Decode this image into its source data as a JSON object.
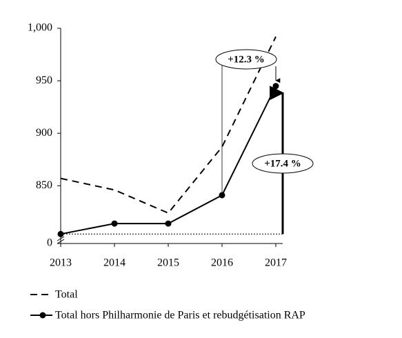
{
  "chart_data": {
    "type": "line",
    "categories": [
      "2013",
      "2014",
      "2015",
      "2016",
      "2017"
    ],
    "series": [
      {
        "name": "Total",
        "color": "#000000",
        "dash": true,
        "marker": false,
        "values": [
          857,
          846,
          824,
          887,
          992
        ]
      },
      {
        "name": "Total hors Philharmonie de Paris et rebudgétisation RAP",
        "color": "#000000",
        "dash": false,
        "marker": true,
        "values": [
          804,
          814,
          814,
          841,
          945
        ]
      }
    ],
    "ylim": [
      0,
      1000
    ],
    "yticks": [
      0,
      850,
      900,
      950,
      {
        "value": 1000,
        "label": "1,000"
      }
    ],
    "y_break": 795,
    "annotations": [
      "+12.3 %",
      "+17.4 %"
    ],
    "legend": "bottom-left"
  }
}
